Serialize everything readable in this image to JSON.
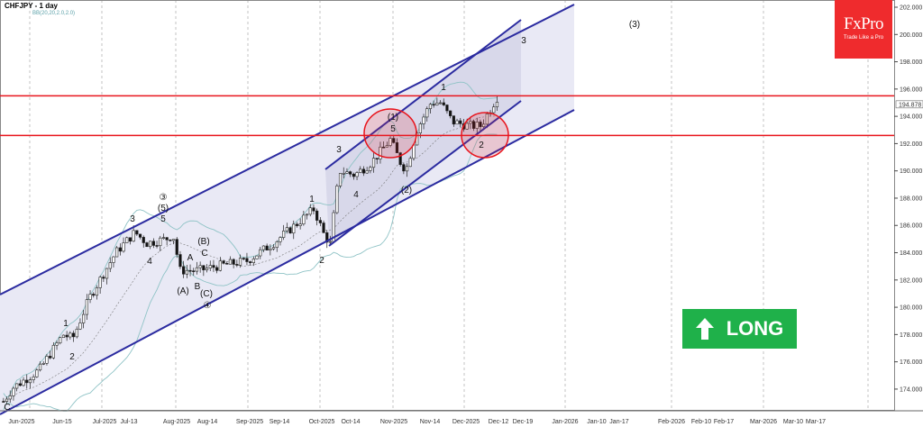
{
  "header": {
    "title": "CHFJPY - 1 day",
    "indicator": "BB(20,20,2.0,2.0)"
  },
  "logo": {
    "brand": "FxPro",
    "tagline": "Trade Like a Pro"
  },
  "signal": {
    "label": "LONG",
    "icon": "arrow-up-icon",
    "color": "#1fb14a"
  },
  "colors": {
    "channel": "#2b2ba0",
    "resistance": "#e8141c",
    "bands": "#8fc3c6",
    "bullish": "#1fb14a"
  },
  "chart_data": {
    "type": "candlestick",
    "symbol": "CHFJPY",
    "timeframe": "1 day",
    "ylim": [
      172.5,
      202.5
    ],
    "y_ticks": [
      "202.000",
      "200.000",
      "198.000",
      "196.000",
      "194.000",
      "192.000",
      "190.000",
      "188.000",
      "186.000",
      "184.000",
      "182.000",
      "180.000",
      "178.000",
      "176.000",
      "174.000"
    ],
    "last_price": "194.878",
    "x_ticks": [
      "Jun-2025",
      "Jun-15",
      "Jul-2025",
      "Jul-13",
      "Aug-2025",
      "Aug-14",
      "Sep-2025",
      "Sep-14",
      "Oct-2025",
      "Oct-14",
      "Nov-2025",
      "Nov-14",
      "Dec-2025",
      "Dec-12",
      "Dec-19",
      "Jan-2026",
      "Jan-10",
      "Jan-17",
      "Feb-2026",
      "Feb-10",
      "Feb-17",
      "Mar-2026",
      "Mar-10",
      "Mar-17"
    ],
    "close_path": [
      [
        "2025-05-22",
        173.1
      ],
      [
        "2025-05-26",
        174.1
      ],
      [
        "2025-06-06",
        175.4
      ],
      [
        "2025-06-16",
        178.0
      ],
      [
        "2025-06-20",
        177.7
      ],
      [
        "2025-06-27",
        180.7
      ],
      [
        "2025-07-08",
        184.0
      ],
      [
        "2025-07-16",
        185.5
      ],
      [
        "2025-07-21",
        184.7
      ],
      [
        "2025-07-29",
        185.0
      ],
      [
        "2025-08-01",
        185.3
      ],
      [
        "2025-08-04",
        182.7
      ],
      [
        "2025-08-12",
        182.7
      ],
      [
        "2025-08-19",
        183.0
      ],
      [
        "2025-09-01",
        183.4
      ],
      [
        "2025-09-12",
        184.7
      ],
      [
        "2025-09-23",
        186.3
      ],
      [
        "2025-09-29",
        187.2
      ],
      [
        "2025-10-03",
        185.4
      ],
      [
        "2025-10-06",
        184.6
      ],
      [
        "2025-10-08",
        188.0
      ],
      [
        "2025-10-10",
        190.0
      ],
      [
        "2025-10-16",
        189.7
      ],
      [
        "2025-10-23",
        190.6
      ],
      [
        "2025-10-31",
        192.3
      ],
      [
        "2025-11-05",
        190.3
      ],
      [
        "2025-11-07",
        190.3
      ],
      [
        "2025-11-11",
        193.0
      ],
      [
        "2025-11-17",
        195.0
      ],
      [
        "2025-11-21",
        195.0
      ],
      [
        "2025-11-26",
        193.6
      ],
      [
        "2025-12-03",
        193.3
      ],
      [
        "2025-12-08",
        193.3
      ],
      [
        "2025-12-11",
        194.3
      ],
      [
        "2025-12-15",
        195.5
      ]
    ],
    "horizontal_levels": [
      195.5,
      192.6
    ],
    "wave_labels": {
      "c_start": "C",
      "w1": "1",
      "w2": "2",
      "w3": "3",
      "w4": "4",
      "w5": "5",
      "circ3": "③",
      "p5": "(5)",
      "pA": "(A)",
      "A": "A",
      "B": "B",
      "C": "C",
      "pB": "(B)",
      "pC": "(C)",
      "circ4": "④",
      "oct1": "1",
      "oct2": "2",
      "oct3": "3",
      "oct4": "4",
      "p1": "(1)",
      "nov5": "5",
      "p2": "(2)",
      "nov1": "1",
      "dec2": "2",
      "target3": "3",
      "target_p3": "(3)"
    }
  }
}
